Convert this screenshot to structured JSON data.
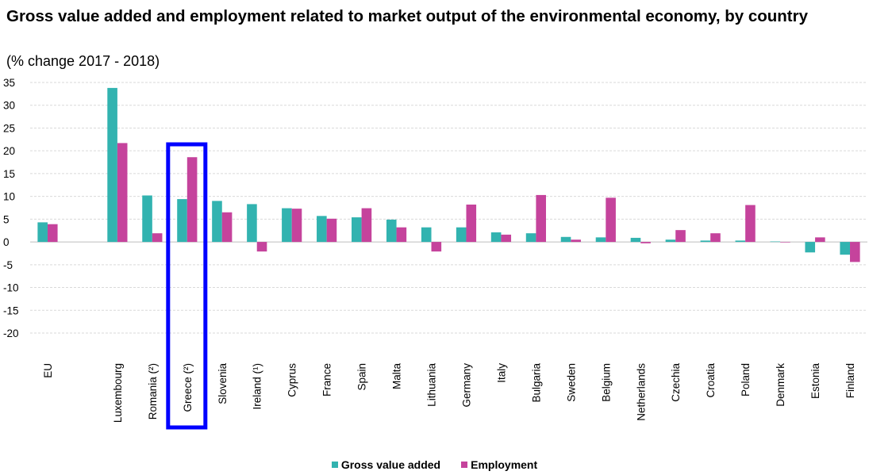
{
  "title": "Gross value added and employment related to market output of the environmental economy, by country",
  "subtitle": "(% change 2017 - 2018)",
  "chart_data": {
    "type": "bar",
    "title": "Gross value added and employment related to market output of the environmental economy, by country",
    "subtitle": "(% change 2017 - 2018)",
    "ylim": [
      -20,
      35
    ],
    "yticks": [
      35,
      30,
      25,
      20,
      15,
      10,
      5,
      0,
      -5,
      -10,
      -15,
      -20
    ],
    "grid": true,
    "legend_position": "bottom",
    "categories": [
      "EU",
      "",
      "Luxembourg",
      "Romania (²)",
      "Greece (²)",
      "Slovenia",
      "Ireland (¹)",
      "Cyprus",
      "France",
      "Spain",
      "Malta",
      "Lithuania",
      "Germany",
      "Italy",
      "Bulgaria",
      "Sweden",
      "Belgium",
      "Netherlands",
      "Czechia",
      "Croatia",
      "Poland",
      "Denmark",
      "Estonia",
      "Finland"
    ],
    "series": [
      {
        "name": "Gross value added",
        "color": "#32b3b0",
        "values": [
          4.3,
          null,
          33.8,
          10.2,
          9.4,
          9.0,
          8.3,
          7.4,
          5.7,
          5.4,
          4.9,
          3.2,
          3.2,
          2.1,
          1.9,
          1.1,
          1.0,
          0.9,
          0.5,
          0.3,
          0.3,
          0.1,
          -2.3,
          -2.8
        ]
      },
      {
        "name": "Employment",
        "color": "#c5439c",
        "values": [
          3.9,
          null,
          21.7,
          1.9,
          18.6,
          6.5,
          -2.1,
          7.3,
          5.1,
          7.4,
          3.2,
          -2.1,
          8.2,
          1.6,
          10.3,
          0.5,
          9.7,
          -0.3,
          2.6,
          1.9,
          8.1,
          0.0,
          1.0,
          -4.4
        ]
      }
    ],
    "highlight": {
      "category": "Greece (²)",
      "color": "#0000ff"
    }
  },
  "legend": {
    "items": [
      {
        "label": "Gross value added",
        "color": "#32b3b0"
      },
      {
        "label": "Employment",
        "color": "#c5439c"
      }
    ]
  }
}
